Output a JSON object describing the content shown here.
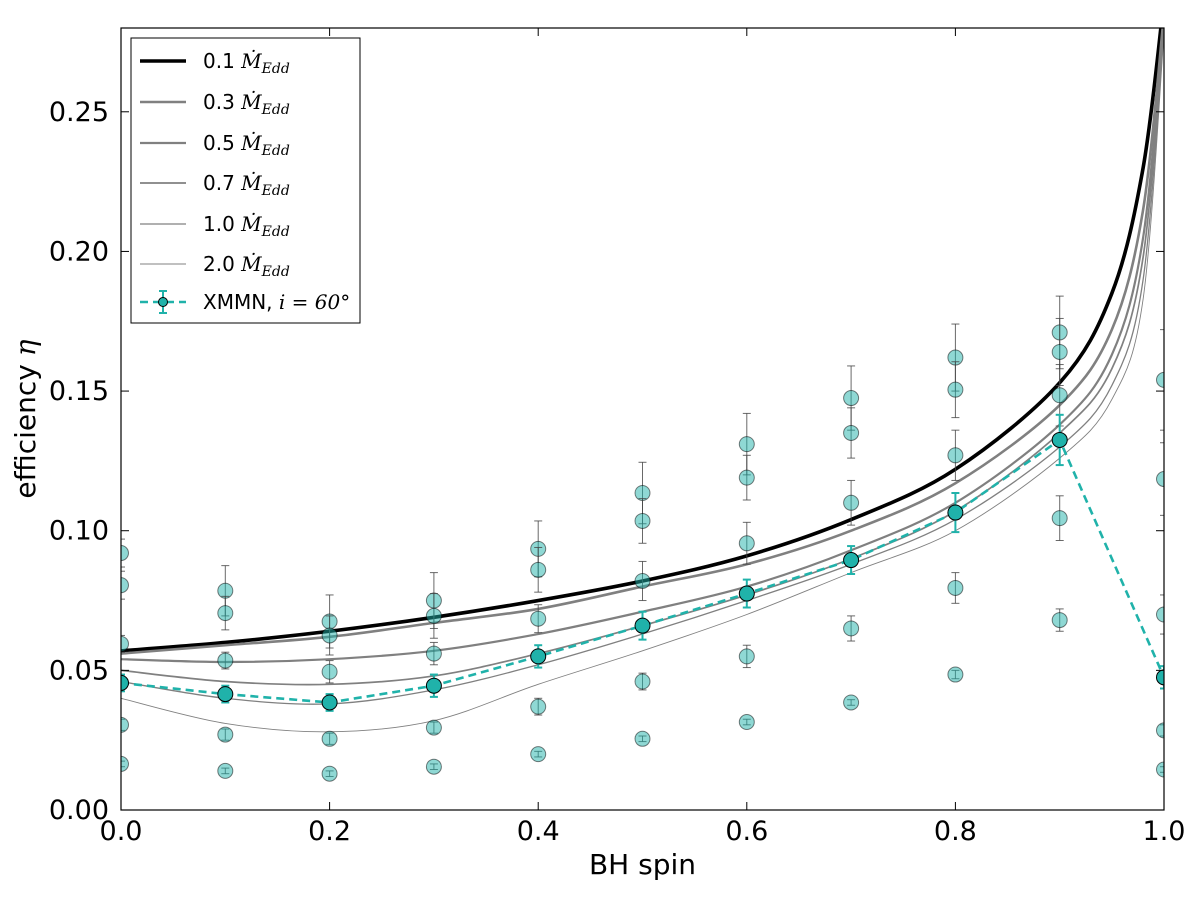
{
  "chart_data": {
    "type": "line",
    "title": "",
    "xlabel": "BH spin",
    "ylabel": "efficiency",
    "ylabel_symbol": "η",
    "xlim": [
      0.0,
      1.0
    ],
    "ylim": [
      0.0,
      0.28
    ],
    "x_ticks": [
      0.0,
      0.2,
      0.4,
      0.6,
      0.8,
      1.0
    ],
    "x_tick_labels": [
      "0.0",
      "0.2",
      "0.4",
      "0.6",
      "0.8",
      "1.0"
    ],
    "y_ticks": [
      0.0,
      0.05,
      0.1,
      0.15,
      0.2,
      0.25
    ],
    "y_tick_labels": [
      "0.00",
      "0.05",
      "0.10",
      "0.15",
      "0.20",
      "0.25"
    ],
    "grid": false,
    "legend_position": "top-left",
    "colors": {
      "teal": "#20b2aa",
      "black": "#000000",
      "gray": "#808080"
    },
    "model_curves": [
      {
        "name": "0.1 Edd",
        "prefix": "0.1",
        "x": [
          0.0,
          0.1,
          0.2,
          0.3,
          0.4,
          0.5,
          0.6,
          0.7,
          0.8,
          0.9,
          0.95,
          0.98,
          1.0
        ],
        "y": [
          0.057,
          0.06,
          0.064,
          0.069,
          0.075,
          0.082,
          0.091,
          0.104,
          0.122,
          0.153,
          0.185,
          0.23,
          0.29
        ]
      },
      {
        "name": "0.3 Edd",
        "prefix": "0.3",
        "x": [
          0.0,
          0.1,
          0.2,
          0.3,
          0.4,
          0.5,
          0.6,
          0.7,
          0.8,
          0.9,
          0.95,
          0.98,
          1.0
        ],
        "y": [
          0.056,
          0.059,
          0.062,
          0.067,
          0.072,
          0.08,
          0.088,
          0.1,
          0.117,
          0.145,
          0.172,
          0.215,
          0.285
        ]
      },
      {
        "name": "0.5 Edd",
        "prefix": "0.5",
        "x": [
          0.0,
          0.1,
          0.2,
          0.3,
          0.4,
          0.5,
          0.6,
          0.7,
          0.8,
          0.9,
          0.95,
          0.98,
          1.0
        ],
        "y": [
          0.054,
          0.053,
          0.054,
          0.057,
          0.063,
          0.071,
          0.08,
          0.093,
          0.11,
          0.138,
          0.163,
          0.205,
          0.283
        ]
      },
      {
        "name": "0.7 Edd",
        "prefix": "0.7",
        "x": [
          0.0,
          0.1,
          0.2,
          0.3,
          0.4,
          0.5,
          0.6,
          0.7,
          0.8,
          0.9,
          0.95,
          0.98,
          1.0
        ],
        "y": [
          0.05,
          0.046,
          0.045,
          0.048,
          0.056,
          0.066,
          0.077,
          0.09,
          0.107,
          0.135,
          0.158,
          0.198,
          0.281
        ]
      },
      {
        "name": "1.0 Edd",
        "prefix": "1.0",
        "x": [
          0.0,
          0.1,
          0.2,
          0.3,
          0.4,
          0.5,
          0.6,
          0.7,
          0.8,
          0.9,
          0.95,
          0.98,
          1.0
        ],
        "y": [
          0.046,
          0.04,
          0.038,
          0.043,
          0.052,
          0.063,
          0.075,
          0.088,
          0.104,
          0.13,
          0.152,
          0.19,
          0.28
        ]
      },
      {
        "name": "2.0 Edd",
        "prefix": "2.0",
        "x": [
          0.0,
          0.1,
          0.2,
          0.3,
          0.4,
          0.5,
          0.6,
          0.7,
          0.8,
          0.9,
          0.95,
          0.98,
          1.0
        ],
        "y": [
          0.04,
          0.031,
          0.028,
          0.032,
          0.045,
          0.057,
          0.07,
          0.085,
          0.1,
          0.126,
          0.147,
          0.183,
          0.278
        ]
      }
    ],
    "legend_math": "Ṁ",
    "legend_math_sub": "Edd",
    "xmmn_series": {
      "name": "XMMN",
      "label_suffix": "i = 60°",
      "x": [
        0.0,
        0.1,
        0.2,
        0.3,
        0.4,
        0.5,
        0.6,
        0.7,
        0.8,
        0.9,
        1.0
      ],
      "y": [
        0.0455,
        0.0415,
        0.0385,
        0.0445,
        0.055,
        0.066,
        0.0775,
        0.0895,
        0.1065,
        0.1325,
        0.0475
      ],
      "err": [
        0.003,
        0.003,
        0.003,
        0.004,
        0.004,
        0.005,
        0.005,
        0.005,
        0.007,
        0.009,
        0.004
      ]
    },
    "scatter_points": [
      {
        "x": 0.0,
        "y": 0.092,
        "err": 0.005
      },
      {
        "x": 0.0,
        "y": 0.0805,
        "err": 0.005
      },
      {
        "x": 0.0,
        "y": 0.0595,
        "err": 0.003
      },
      {
        "x": 0.0,
        "y": 0.0305,
        "err": 0.002
      },
      {
        "x": 0.0,
        "y": 0.0165,
        "err": 0.001
      },
      {
        "x": 0.1,
        "y": 0.0785,
        "err": 0.009
      },
      {
        "x": 0.1,
        "y": 0.0705,
        "err": 0.006
      },
      {
        "x": 0.1,
        "y": 0.0535,
        "err": 0.003
      },
      {
        "x": 0.1,
        "y": 0.027,
        "err": 0.002
      },
      {
        "x": 0.1,
        "y": 0.014,
        "err": 0.001
      },
      {
        "x": 0.2,
        "y": 0.0675,
        "err": 0.0095
      },
      {
        "x": 0.2,
        "y": 0.0625,
        "err": 0.007
      },
      {
        "x": 0.2,
        "y": 0.0495,
        "err": 0.004
      },
      {
        "x": 0.2,
        "y": 0.0255,
        "err": 0.002
      },
      {
        "x": 0.2,
        "y": 0.013,
        "err": 0.001
      },
      {
        "x": 0.3,
        "y": 0.075,
        "err": 0.01
      },
      {
        "x": 0.3,
        "y": 0.0695,
        "err": 0.008
      },
      {
        "x": 0.3,
        "y": 0.056,
        "err": 0.004
      },
      {
        "x": 0.3,
        "y": 0.0295,
        "err": 0.002
      },
      {
        "x": 0.3,
        "y": 0.0155,
        "err": 0.001
      },
      {
        "x": 0.4,
        "y": 0.0935,
        "err": 0.01
      },
      {
        "x": 0.4,
        "y": 0.086,
        "err": 0.008
      },
      {
        "x": 0.4,
        "y": 0.0685,
        "err": 0.005
      },
      {
        "x": 0.4,
        "y": 0.037,
        "err": 0.003
      },
      {
        "x": 0.4,
        "y": 0.02,
        "err": 0.001
      },
      {
        "x": 0.5,
        "y": 0.1135,
        "err": 0.011
      },
      {
        "x": 0.5,
        "y": 0.1035,
        "err": 0.008
      },
      {
        "x": 0.5,
        "y": 0.082,
        "err": 0.007
      },
      {
        "x": 0.5,
        "y": 0.046,
        "err": 0.003
      },
      {
        "x": 0.5,
        "y": 0.0255,
        "err": 0.001
      },
      {
        "x": 0.6,
        "y": 0.131,
        "err": 0.011
      },
      {
        "x": 0.6,
        "y": 0.119,
        "err": 0.008
      },
      {
        "x": 0.6,
        "y": 0.0955,
        "err": 0.0075
      },
      {
        "x": 0.6,
        "y": 0.055,
        "err": 0.004
      },
      {
        "x": 0.6,
        "y": 0.0315,
        "err": 0.001
      },
      {
        "x": 0.7,
        "y": 0.1475,
        "err": 0.0115
      },
      {
        "x": 0.7,
        "y": 0.135,
        "err": 0.009
      },
      {
        "x": 0.7,
        "y": 0.11,
        "err": 0.008
      },
      {
        "x": 0.7,
        "y": 0.065,
        "err": 0.0045
      },
      {
        "x": 0.7,
        "y": 0.0385,
        "err": 0.001
      },
      {
        "x": 0.8,
        "y": 0.162,
        "err": 0.012
      },
      {
        "x": 0.8,
        "y": 0.1505,
        "err": 0.01
      },
      {
        "x": 0.8,
        "y": 0.127,
        "err": 0.009
      },
      {
        "x": 0.8,
        "y": 0.0795,
        "err": 0.0055
      },
      {
        "x": 0.8,
        "y": 0.0485,
        "err": 0.0015
      },
      {
        "x": 0.9,
        "y": 0.171,
        "err": 0.013
      },
      {
        "x": 0.9,
        "y": 0.164,
        "err": 0.012
      },
      {
        "x": 0.9,
        "y": 0.1485,
        "err": 0.011
      },
      {
        "x": 0.9,
        "y": 0.1045,
        "err": 0.008
      },
      {
        "x": 0.9,
        "y": 0.068,
        "err": 0.004
      },
      {
        "x": 1.0,
        "y": 0.154,
        "err": 0.018
      },
      {
        "x": 1.0,
        "y": 0.1185,
        "err": 0.013
      },
      {
        "x": 1.0,
        "y": 0.07,
        "err": 0.007
      },
      {
        "x": 1.0,
        "y": 0.0285,
        "err": 0.002
      },
      {
        "x": 1.0,
        "y": 0.0145,
        "err": 0.001
      }
    ]
  }
}
